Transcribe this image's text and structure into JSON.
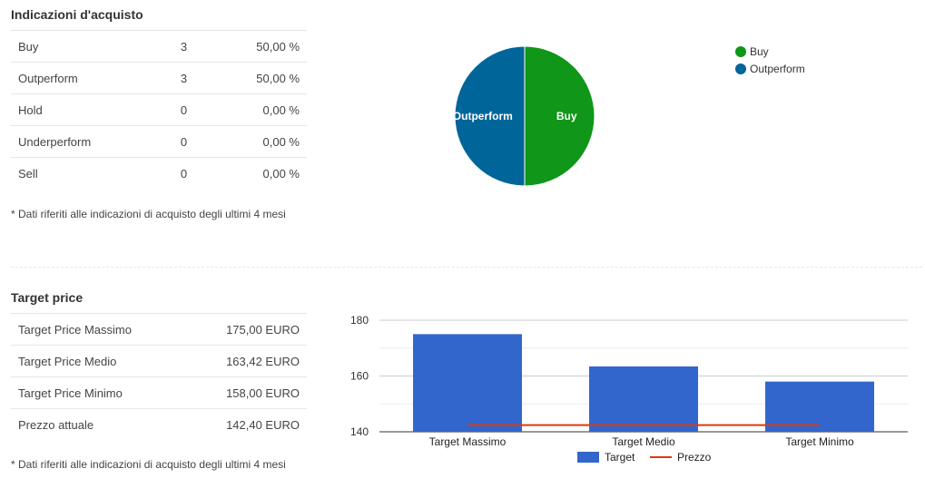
{
  "recommendations": {
    "title": "Indicazioni d'acquisto",
    "rows": [
      {
        "label": "Buy",
        "count": "3",
        "pct": "50,00 %"
      },
      {
        "label": "Outperform",
        "count": "3",
        "pct": "50,00 %"
      },
      {
        "label": "Hold",
        "count": "0",
        "pct": "0,00 %"
      },
      {
        "label": "Underperform",
        "count": "0",
        "pct": "0,00 %"
      },
      {
        "label": "Sell",
        "count": "0",
        "pct": "0,00 %"
      }
    ],
    "note": "* Dati riferiti alle indicazioni di acquisto degli ultimi 4 mesi"
  },
  "target_price": {
    "title": "Target price",
    "rows": [
      {
        "label": "Target Price Massimo",
        "value": "175,00 EURO"
      },
      {
        "label": "Target Price Medio",
        "value": "163,42 EURO"
      },
      {
        "label": "Target Price Minimo",
        "value": "158,00 EURO"
      },
      {
        "label": "Prezzo attuale",
        "value": "142,40 EURO"
      }
    ],
    "note": "* Dati riferiti alle indicazioni di acquisto degli ultimi 4 mesi"
  },
  "colors": {
    "buy": "#109618",
    "outperform": "#006699",
    "target_bar": "#3366cc",
    "price_line": "#dc3912"
  },
  "chart_data": [
    {
      "type": "pie",
      "slices": [
        {
          "label": "Buy",
          "value": 3
        },
        {
          "label": "Outperform",
          "value": 3
        }
      ],
      "legend": [
        "Buy",
        "Outperform"
      ],
      "legend_position": "right"
    },
    {
      "type": "bar",
      "categories": [
        "Target Massimo",
        "Target Medio",
        "Target Minimo"
      ],
      "series": [
        {
          "name": "Target",
          "type": "bar",
          "values": [
            175.0,
            163.42,
            158.0
          ]
        },
        {
          "name": "Prezzo",
          "type": "line",
          "values": [
            142.4,
            142.4,
            142.4
          ]
        }
      ],
      "ylim": [
        140,
        180
      ],
      "yticks": [
        "140",
        "160",
        "180"
      ],
      "grid": true,
      "legend": [
        "Target",
        "Prezzo"
      ],
      "legend_position": "bottom"
    }
  ]
}
